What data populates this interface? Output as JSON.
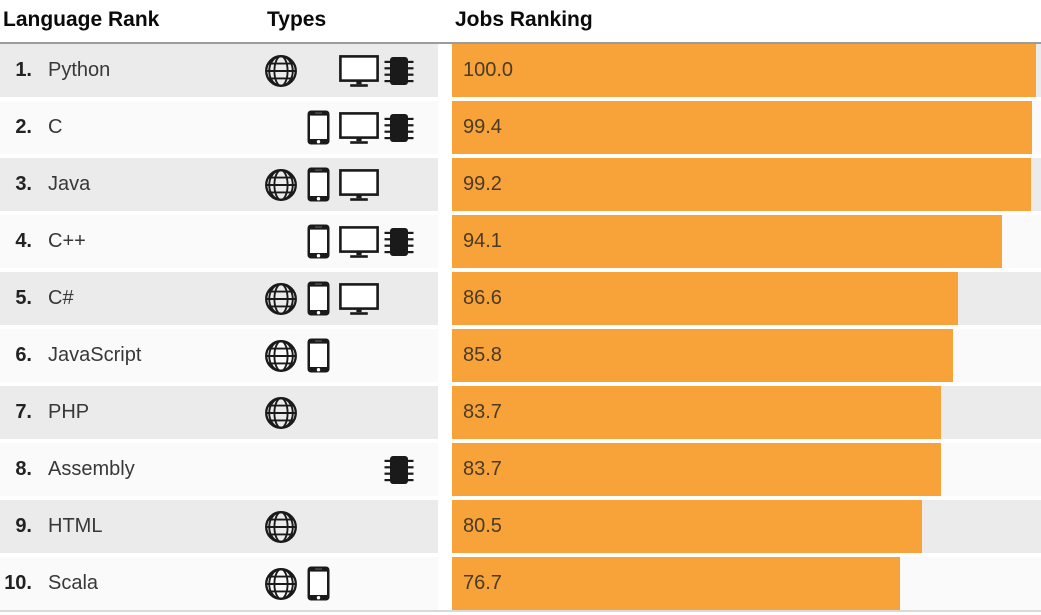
{
  "header": {
    "col_language": "Language Rank",
    "col_types": "Types",
    "col_jobs": "Jobs Ranking"
  },
  "colors": {
    "bar": "#f8a23a",
    "row_odd_bg": "#ebebeb",
    "row_even_bg": "#fafafa",
    "header_rule": "#9c9c9c",
    "bottom_rule": "#d9d9d9",
    "bar_text": "#4a3b26",
    "icon": "#1a1a1a"
  },
  "type_slots": [
    "web",
    "mobile",
    "desktop",
    "embedded"
  ],
  "type_icons": {
    "web": "globe-icon",
    "mobile": "smartphone-icon",
    "desktop": "monitor-icon",
    "embedded": "chip-icon"
  },
  "rows": [
    {
      "rank": "1.",
      "language": "Python",
      "types": [
        "web",
        "desktop",
        "embedded"
      ],
      "jobs_ranking": "100.0"
    },
    {
      "rank": "2.",
      "language": "C",
      "types": [
        "mobile",
        "desktop",
        "embedded"
      ],
      "jobs_ranking": "99.4"
    },
    {
      "rank": "3.",
      "language": "Java",
      "types": [
        "web",
        "mobile",
        "desktop"
      ],
      "jobs_ranking": "99.2"
    },
    {
      "rank": "4.",
      "language": "C++",
      "types": [
        "mobile",
        "desktop",
        "embedded"
      ],
      "jobs_ranking": "94.1"
    },
    {
      "rank": "5.",
      "language": "C#",
      "types": [
        "web",
        "mobile",
        "desktop"
      ],
      "jobs_ranking": "86.6"
    },
    {
      "rank": "6.",
      "language": "JavaScript",
      "types": [
        "web",
        "mobile"
      ],
      "jobs_ranking": "85.8"
    },
    {
      "rank": "7.",
      "language": "PHP",
      "types": [
        "web"
      ],
      "jobs_ranking": "83.7"
    },
    {
      "rank": "8.",
      "language": "Assembly",
      "types": [
        "embedded"
      ],
      "jobs_ranking": "83.7"
    },
    {
      "rank": "9.",
      "language": "HTML",
      "types": [
        "web"
      ],
      "jobs_ranking": "80.5"
    },
    {
      "rank": "10.",
      "language": "Scala",
      "types": [
        "web",
        "mobile"
      ],
      "jobs_ranking": "76.7"
    }
  ],
  "chart_data": {
    "type": "bar",
    "orientation": "horizontal",
    "title": "Jobs Ranking",
    "categories": [
      "Python",
      "C",
      "Java",
      "C++",
      "C#",
      "JavaScript",
      "PHP",
      "Assembly",
      "HTML",
      "Scala"
    ],
    "values": [
      100.0,
      99.4,
      99.2,
      94.1,
      86.6,
      85.8,
      83.7,
      83.7,
      80.5,
      76.7
    ],
    "xlim": [
      0,
      100
    ],
    "bar_color": "#f8a23a",
    "value_labels_shown": true,
    "grid": false,
    "legend": false
  }
}
